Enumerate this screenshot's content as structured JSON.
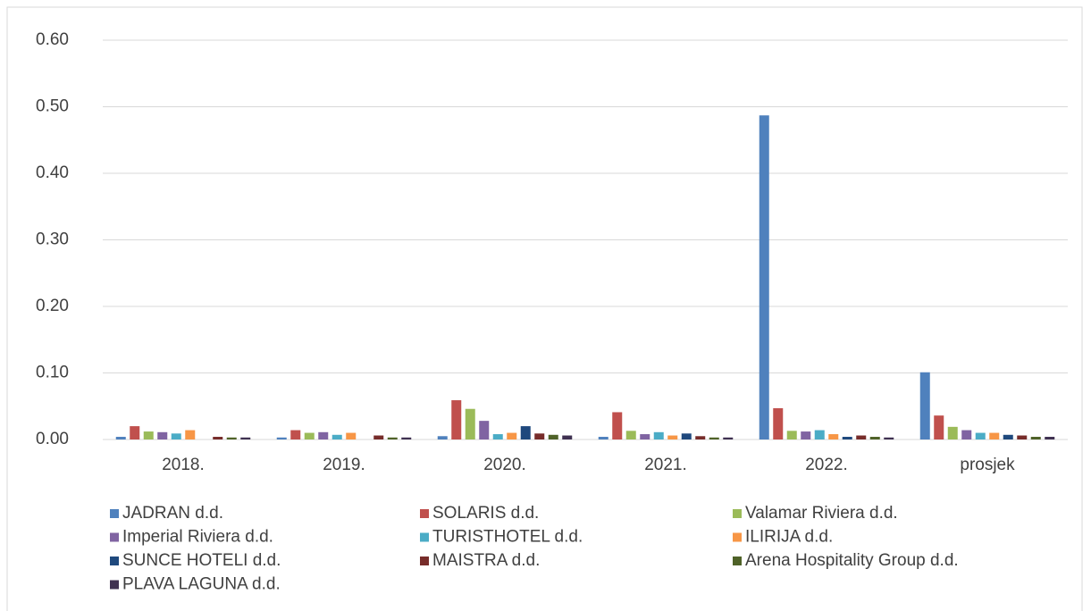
{
  "chart_data": {
    "type": "bar",
    "categories": [
      "2018.",
      "2019.",
      "2020.",
      "2021.",
      "2022.",
      "prosjek"
    ],
    "series": [
      {
        "name": "JADRAN d.d.",
        "color": "#4f81bd",
        "values": [
          0.004,
          0.003,
          0.005,
          0.004,
          0.487,
          0.101
        ]
      },
      {
        "name": "SOLARIS d.d.",
        "color": "#c0504d",
        "values": [
          0.02,
          0.014,
          0.059,
          0.041,
          0.047,
          0.036
        ]
      },
      {
        "name": "Valamar Riviera d.d.",
        "color": "#9bbb59",
        "values": [
          0.012,
          0.01,
          0.046,
          0.013,
          0.013,
          0.019
        ]
      },
      {
        "name": "Imperial Riviera d.d.",
        "color": "#8064a2",
        "values": [
          0.011,
          0.011,
          0.028,
          0.008,
          0.012,
          0.014
        ]
      },
      {
        "name": "TURISTHOTEL d.d.",
        "color": "#4bacc6",
        "values": [
          0.009,
          0.007,
          0.008,
          0.011,
          0.014,
          0.01
        ]
      },
      {
        "name": "ILIRIJA d.d.",
        "color": "#f79646",
        "values": [
          0.014,
          0.01,
          0.01,
          0.006,
          0.008,
          0.01
        ]
      },
      {
        "name": "SUNCE HOTELI d.d.",
        "color": "#1f497d",
        "values": [
          0,
          0,
          0.02,
          0.009,
          0.004,
          0.007
        ]
      },
      {
        "name": "MAISTRA d.d.",
        "color": "#772c2a",
        "values": [
          0.004,
          0.006,
          0.009,
          0.005,
          0.006,
          0.006
        ]
      },
      {
        "name": "Arena Hospitality Group d.d.",
        "color": "#4f6228",
        "values": [
          0.003,
          0.003,
          0.007,
          0.003,
          0.004,
          0.004
        ]
      },
      {
        "name": "PLAVA LAGUNA d.d.",
        "color": "#3f3151",
        "values": [
          0.003,
          0.003,
          0.006,
          0.003,
          0.003,
          0.004
        ]
      }
    ],
    "ylim": [
      0,
      0.6
    ],
    "yticks": [
      {
        "value": 0,
        "label": "0.00"
      },
      {
        "value": 0.1,
        "label": "0.10"
      },
      {
        "value": 0.2,
        "label": "0.20"
      },
      {
        "value": 0.3,
        "label": "0.30"
      },
      {
        "value": 0.4,
        "label": "0.40"
      },
      {
        "value": 0.5,
        "label": "0.50"
      },
      {
        "value": 0.6,
        "label": "0.60"
      }
    ],
    "grid": true,
    "legend": "bottom"
  }
}
